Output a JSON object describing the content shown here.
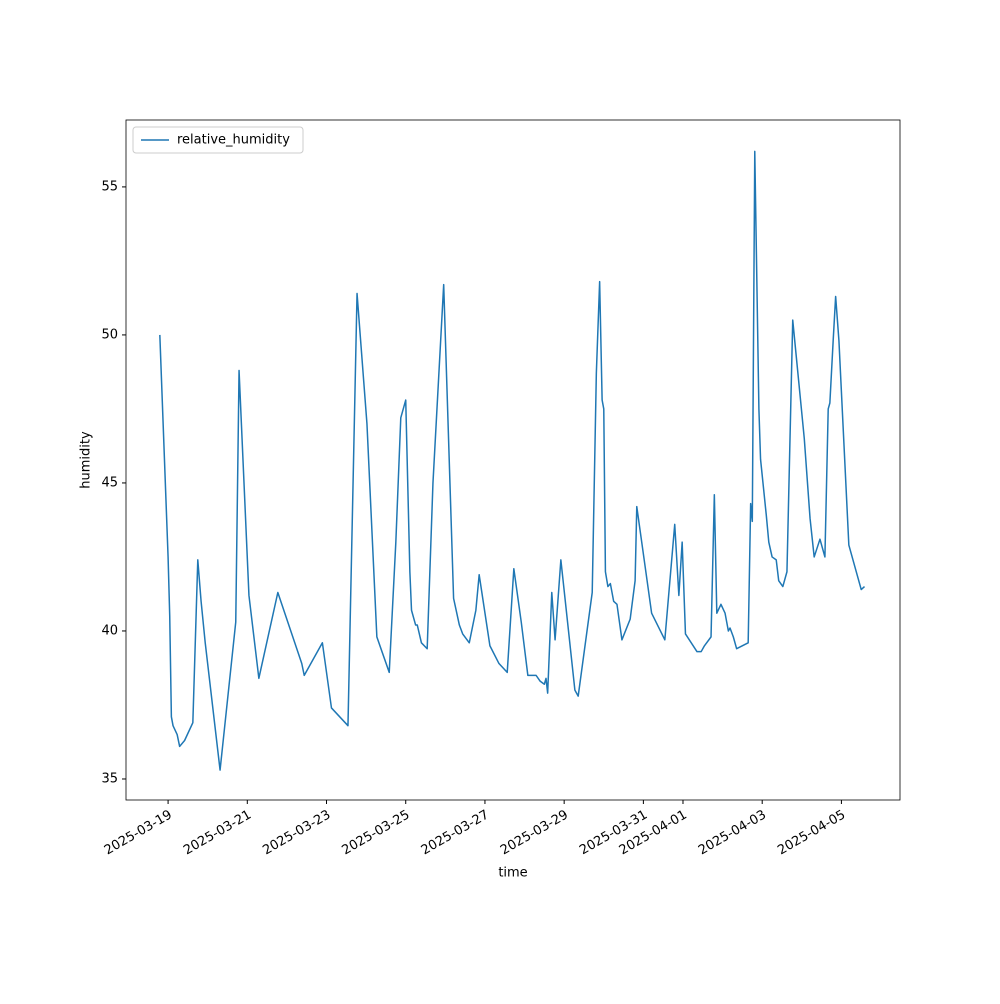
{
  "chart_data": {
    "type": "line",
    "xlabel": "time",
    "ylabel": "humidity",
    "x": [
      "2025-03-18T19:00",
      "2025-03-19T00:00",
      "2025-03-19T01:00",
      "2025-03-19T02:00",
      "2025-03-19T03:00",
      "2025-03-19T05:30",
      "2025-03-19T07:00",
      "2025-03-19T10:00",
      "2025-03-19T15:00",
      "2025-03-19T18:00",
      "2025-03-19T20:00",
      "2025-03-19T22:30",
      "2025-03-20T07:30",
      "2025-03-20T17:00",
      "2025-03-20T19:00",
      "2025-03-21T01:00",
      "2025-03-21T07:00",
      "2025-03-21T18:30",
      "2025-03-22T09:00",
      "2025-03-22T10:30",
      "2025-03-22T21:30",
      "2025-03-23T03:00",
      "2025-03-23T13:00",
      "2025-03-23T18:30",
      "2025-03-24T00:30",
      "2025-03-24T06:30",
      "2025-03-24T14:00",
      "2025-03-24T18:00",
      "2025-03-24T21:00",
      "2025-03-25T00:00",
      "2025-03-25T02:30",
      "2025-03-25T03:30",
      "2025-03-25T06:00",
      "2025-03-25T07:00",
      "2025-03-25T09:30",
      "2025-03-25T13:00",
      "2025-03-25T16:30",
      "2025-03-25T23:00",
      "2025-03-26T05:00",
      "2025-03-26T08:30",
      "2025-03-26T10:30",
      "2025-03-26T14:30",
      "2025-03-26T18:30",
      "2025-03-26T20:30",
      "2025-03-27T03:00",
      "2025-03-27T08:30",
      "2025-03-27T13:30",
      "2025-03-27T17:30",
      "2025-03-27T22:00",
      "2025-03-28T02:00",
      "2025-03-28T07:00",
      "2025-03-28T09:30",
      "2025-03-28T12:00",
      "2025-03-28T13:00",
      "2025-03-28T14:00",
      "2025-03-28T16:30",
      "2025-03-28T18:30",
      "2025-03-28T22:00",
      "2025-03-29T06:30",
      "2025-03-29T08:30",
      "2025-03-29T17:00",
      "2025-03-29T19:30",
      "2025-03-29T21:30",
      "2025-03-29T23:00",
      "2025-03-30T00:00",
      "2025-03-30T01:00",
      "2025-03-30T02:30",
      "2025-03-30T04:00",
      "2025-03-30T06:00",
      "2025-03-30T08:00",
      "2025-03-30T11:00",
      "2025-03-30T16:00",
      "2025-03-30T19:00",
      "2025-03-30T20:00",
      "2025-03-31T05:00",
      "2025-03-31T13:00",
      "2025-03-31T19:00",
      "2025-03-31T21:30",
      "2025-03-31T23:30",
      "2025-04-01T01:30",
      "2025-04-01T08:30",
      "2025-04-01T11:00",
      "2025-04-01T13:00",
      "2025-04-01T17:00",
      "2025-04-01T19:00",
      "2025-04-01T20:30",
      "2025-04-01T23:00",
      "2025-04-02T01:30",
      "2025-04-02T03:30",
      "2025-04-02T04:30",
      "2025-04-02T06:30",
      "2025-04-02T08:30",
      "2025-04-02T15:30",
      "2025-04-02T17:00",
      "2025-04-02T18:00",
      "2025-04-02T19:30",
      "2025-04-02T22:00",
      "2025-04-02T23:00",
      "2025-04-03T02:30",
      "2025-04-03T04:00",
      "2025-04-03T06:00",
      "2025-04-03T08:30",
      "2025-04-03T10:00",
      "2025-04-03T12:30",
      "2025-04-03T15:00",
      "2025-04-03T18:30",
      "2025-04-04T01:30",
      "2025-04-04T05:00",
      "2025-04-04T07:30",
      "2025-04-04T11:00",
      "2025-04-04T14:00",
      "2025-04-04T16:00",
      "2025-04-04T17:00",
      "2025-04-04T19:00",
      "2025-04-04T20:30",
      "2025-04-04T22:30",
      "2025-04-05T04:30",
      "2025-04-05T10:00",
      "2025-04-05T12:00",
      "2025-04-05T14:00"
    ],
    "series": [
      {
        "name": "relative_humidity",
        "color": "#1f77b4",
        "values": [
          50.0,
          42.5,
          40.5,
          37.1,
          36.8,
          36.5,
          36.1,
          36.3,
          36.9,
          42.4,
          41.0,
          39.6,
          35.3,
          40.3,
          48.8,
          41.2,
          38.4,
          41.3,
          38.9,
          38.5,
          39.6,
          37.4,
          36.8,
          51.4,
          47.0,
          39.8,
          38.6,
          43.0,
          47.2,
          47.8,
          42.0,
          40.7,
          40.2,
          40.2,
          39.6,
          39.4,
          45.0,
          51.7,
          41.1,
          40.2,
          39.9,
          39.6,
          40.7,
          41.9,
          39.5,
          38.9,
          38.6,
          42.1,
          40.3,
          38.5,
          38.5,
          38.3,
          38.2,
          38.4,
          37.9,
          41.3,
          39.7,
          42.4,
          38.0,
          37.8,
          41.3,
          48.7,
          51.8,
          47.8,
          47.5,
          42.0,
          41.5,
          41.6,
          41.0,
          40.9,
          39.7,
          40.4,
          41.7,
          44.2,
          40.6,
          39.7,
          43.6,
          41.2,
          43.0,
          39.9,
          39.3,
          39.3,
          39.5,
          39.8,
          44.6,
          40.6,
          40.9,
          40.6,
          40.0,
          40.1,
          39.8,
          39.4,
          39.6,
          44.3,
          43.7,
          56.2,
          47.5,
          45.8,
          43.9,
          43.0,
          42.5,
          42.4,
          41.7,
          41.5,
          42.0,
          50.5,
          46.5,
          43.8,
          42.5,
          43.1,
          42.5,
          47.5,
          47.7,
          49.8,
          51.3,
          49.8,
          42.9,
          41.8,
          41.4,
          41.5
        ]
      }
    ],
    "xlim": [
      "2025-03-17T22:30",
      "2025-04-06T11:30"
    ],
    "xticks": [
      "2025-03-19",
      "2025-03-21",
      "2025-03-23",
      "2025-03-25",
      "2025-03-27",
      "2025-03-29",
      "2025-03-31",
      "2025-04-01",
      "2025-04-03",
      "2025-04-05"
    ],
    "ylim": [
      34.29,
      57.26
    ],
    "yticks": [
      35,
      40,
      45,
      50,
      55
    ],
    "legend": "upper left",
    "grid": false
  }
}
